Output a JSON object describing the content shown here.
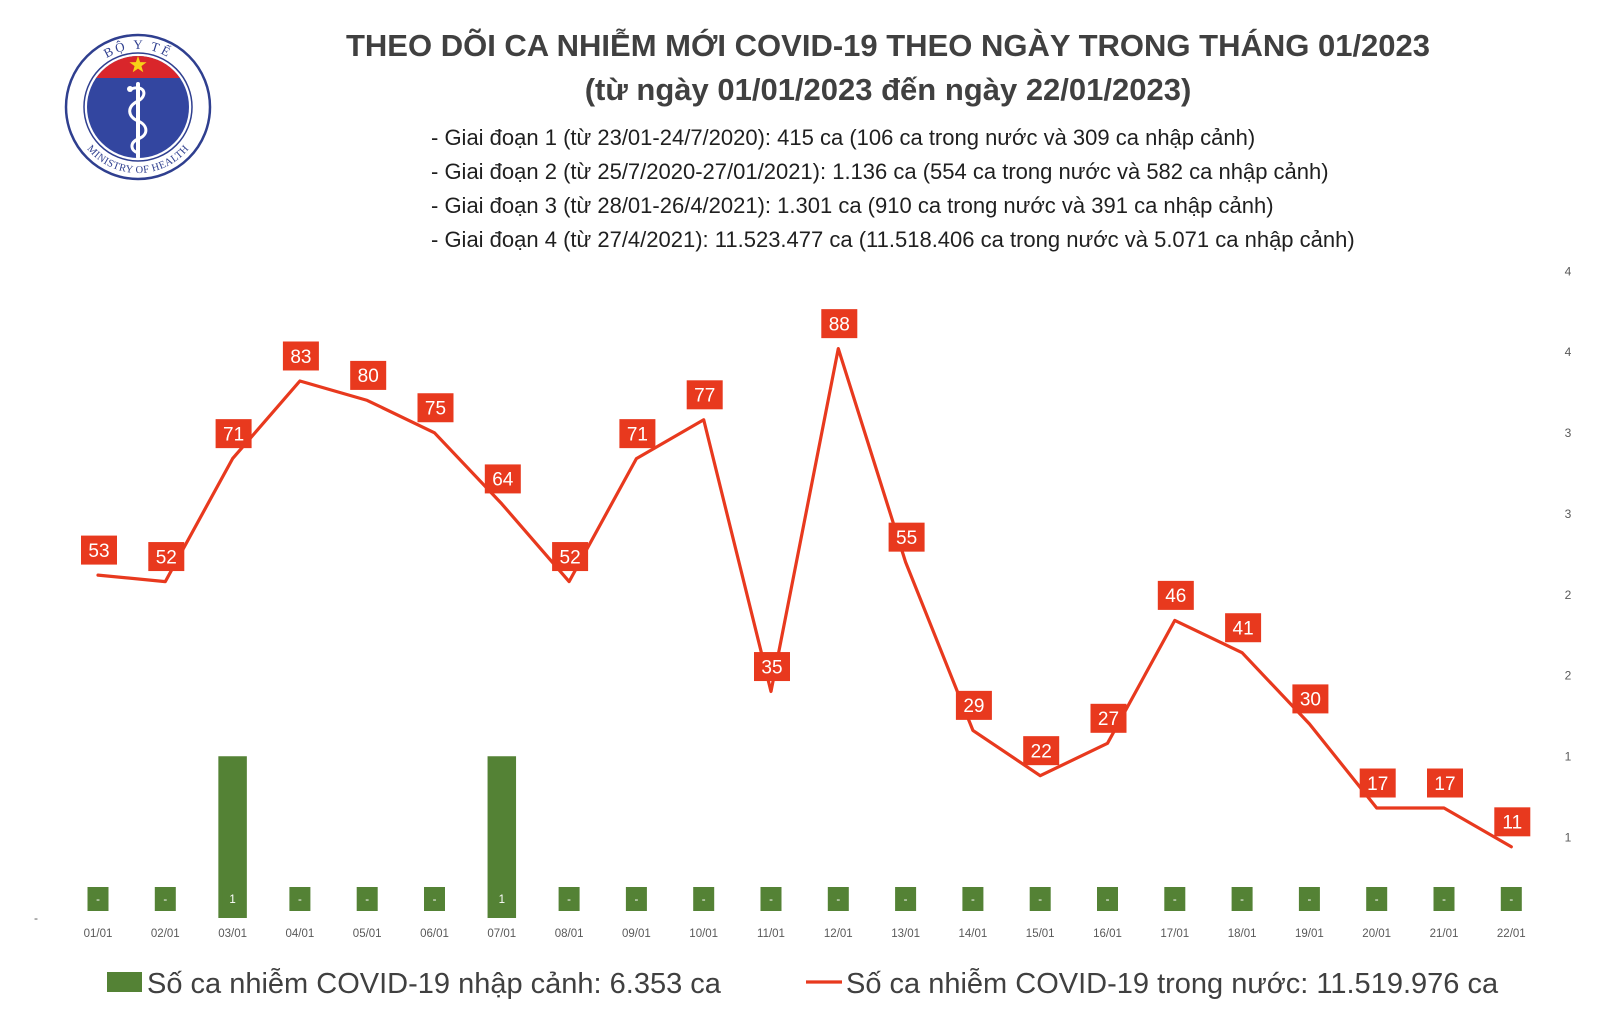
{
  "logo": {
    "top_text": "BỘ Y TẾ",
    "bottom_text": "MINISTRY OF HEALTH",
    "colors": {
      "ring": "#2f3f8f",
      "disc": "#3346a0",
      "cap": "#d9262b",
      "star": "#f7d117"
    }
  },
  "chart_data": {
    "type": "line",
    "title": "THEO DÕI CA NHIỄM MỚI COVID-19 THEO NGÀY TRONG THÁNG 01/2023",
    "subtitle": "(từ ngày 01/01/2023 đến ngày 22/01/2023)",
    "annotations": [
      "- Giai đoạn 1 (từ 23/01-24/7/2020): 415 ca (106 ca trong nước và 309 ca nhập cảnh)",
      "- Giai đoạn 2 (từ 25/7/2020-27/01/2021): 1.136 ca (554 ca trong nước và 582 ca nhập cảnh)",
      "- Giai đoạn 3 (từ 28/01-26/4/2021): 1.301 ca (910 ca trong nước và 391 ca nhập cảnh)",
      "- Giai đoạn 4 (từ 27/4/2021): 11.523.477 ca (11.518.406 ca trong nước và 5.071 ca nhập cảnh)"
    ],
    "categories": [
      "01/01",
      "02/01",
      "03/01",
      "04/01",
      "05/01",
      "06/01",
      "07/01",
      "08/01",
      "09/01",
      "10/01",
      "11/01",
      "12/01",
      "13/01",
      "14/01",
      "15/01",
      "16/01",
      "17/01",
      "18/01",
      "19/01",
      "20/01",
      "21/01",
      "22/01"
    ],
    "series": [
      {
        "name": "Số ca nhiễm COVID-19 nhập cảnh: 6.353 ca",
        "type": "bar",
        "axis": "right",
        "color": "#548235",
        "values": [
          0,
          0,
          1,
          0,
          0,
          0,
          1,
          0,
          0,
          0,
          0,
          0,
          0,
          0,
          0,
          0,
          0,
          0,
          0,
          0,
          0,
          0
        ]
      },
      {
        "name": "Số ca nhiễm COVID-19 trong nước: 11.519.976 ca",
        "type": "line",
        "axis": "left",
        "color": "#e8391e",
        "values": [
          53,
          52,
          71,
          83,
          80,
          75,
          64,
          52,
          71,
          77,
          35,
          88,
          55,
          29,
          22,
          27,
          46,
          41,
          30,
          17,
          17,
          11
        ]
      }
    ],
    "zero_value_label": "-",
    "ylim": [
      0,
      100
    ],
    "y_ticks": [
      0
    ],
    "y_tick_labels": [
      "-"
    ],
    "y2lim": [
      0,
      4
    ],
    "y2_ticks": [
      0.5,
      1,
      1.5,
      2,
      2.5,
      3,
      3.5,
      4
    ],
    "y2_tick_labels": [
      "1",
      "1",
      "2",
      "2",
      "3",
      "3",
      "4",
      "4"
    ],
    "data_labels": true,
    "grid": false,
    "legend": "bottom"
  }
}
